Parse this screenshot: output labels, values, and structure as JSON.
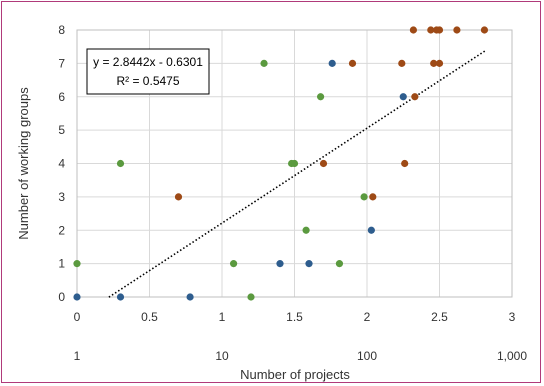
{
  "chart_data": {
    "type": "scatter",
    "title": "",
    "xlabel": "Number of projects",
    "ylabel": "Number of working groups",
    "xlim": [
      0,
      3
    ],
    "ylim": [
      0,
      8
    ],
    "xticks": [
      "0",
      "0.5",
      "1",
      "1.5",
      "2",
      "2.5",
      "3"
    ],
    "yticks": [
      "0",
      "1",
      "2",
      "3",
      "4",
      "5",
      "6",
      "7",
      "8"
    ],
    "secondary_x_ticks": [
      "1",
      "10",
      "100",
      "1,000"
    ],
    "grid": true,
    "colors": {
      "blue": "#2e5d8e",
      "green": "#5b9a3f",
      "brown": "#9e4a16",
      "grid": "#d9d9d9",
      "border": "#b03a7a"
    },
    "series": [
      {
        "color_key": "blue",
        "points": [
          {
            "x": 0.0,
            "y": 0
          },
          {
            "x": 0.3,
            "y": 0
          },
          {
            "x": 0.78,
            "y": 0
          },
          {
            "x": 1.4,
            "y": 1
          },
          {
            "x": 1.6,
            "y": 1
          },
          {
            "x": 2.03,
            "y": 2
          },
          {
            "x": 1.76,
            "y": 7
          },
          {
            "x": 2.25,
            "y": 6
          }
        ]
      },
      {
        "color_key": "green",
        "points": [
          {
            "x": 0.0,
            "y": 1
          },
          {
            "x": 0.3,
            "y": 4
          },
          {
            "x": 1.08,
            "y": 1
          },
          {
            "x": 1.2,
            "y": 0
          },
          {
            "x": 1.29,
            "y": 7
          },
          {
            "x": 1.48,
            "y": 4
          },
          {
            "x": 1.5,
            "y": 4
          },
          {
            "x": 1.58,
            "y": 2
          },
          {
            "x": 1.68,
            "y": 6
          },
          {
            "x": 1.81,
            "y": 1
          },
          {
            "x": 1.98,
            "y": 3
          }
        ]
      },
      {
        "color_key": "brown",
        "points": [
          {
            "x": 0.7,
            "y": 3
          },
          {
            "x": 1.7,
            "y": 4
          },
          {
            "x": 1.9,
            "y": 7
          },
          {
            "x": 2.04,
            "y": 3
          },
          {
            "x": 2.24,
            "y": 7
          },
          {
            "x": 2.26,
            "y": 4
          },
          {
            "x": 2.33,
            "y": 6
          },
          {
            "x": 2.32,
            "y": 8
          },
          {
            "x": 2.44,
            "y": 8
          },
          {
            "x": 2.48,
            "y": 8
          },
          {
            "x": 2.5,
            "y": 8
          },
          {
            "x": 2.46,
            "y": 7
          },
          {
            "x": 2.5,
            "y": 7
          },
          {
            "x": 2.62,
            "y": 8
          },
          {
            "x": 2.81,
            "y": 8
          }
        ]
      }
    ],
    "trendline": {
      "style": "dotted",
      "slope": 2.8442,
      "intercept": -0.6301,
      "x_range": [
        0.22,
        2.82
      ]
    },
    "annotation": {
      "equation": "y = 2.8442x - 0.6301",
      "r_squared": "R² = 0.5475"
    }
  }
}
